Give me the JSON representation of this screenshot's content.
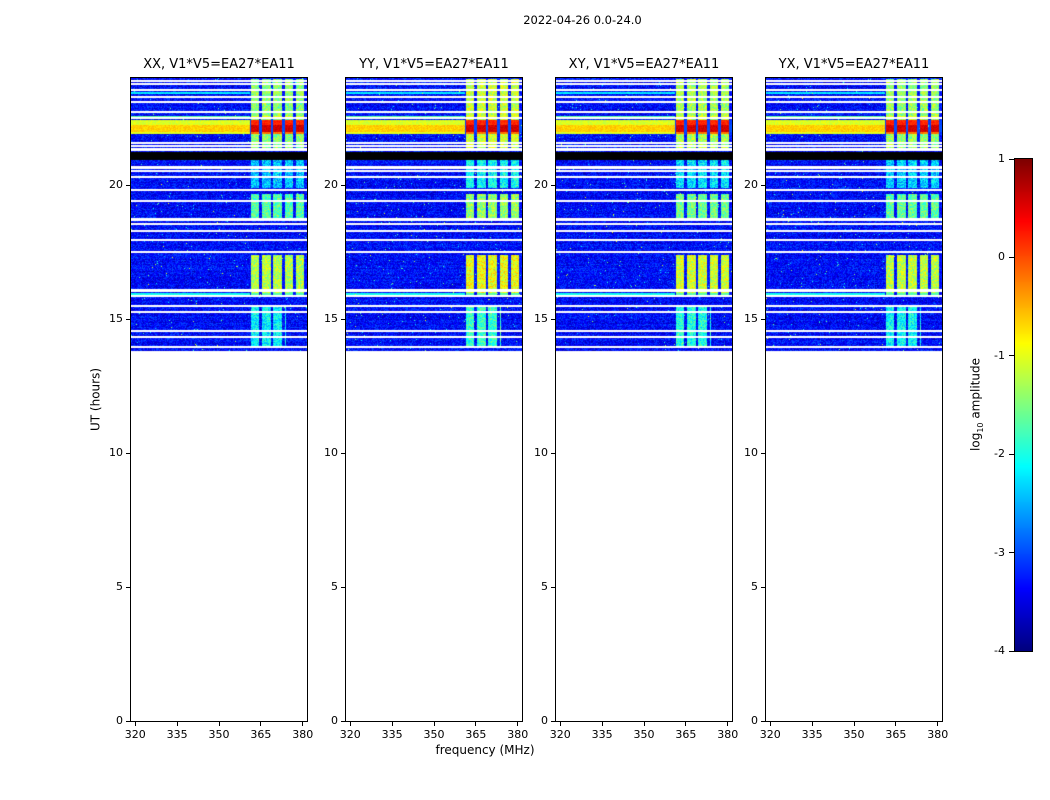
{
  "figure": {
    "title": "2022-04-26 0.0-24.0",
    "xlabel": "frequency (MHz)",
    "ylabel": "UT (hours)",
    "colorbar_label": {
      "pre": "log",
      "sub": "10",
      "post": " amplitude"
    }
  },
  "chart_data": {
    "type": "heatmap",
    "title": "2022-04-26 0.0-24.0",
    "panels": [
      {
        "label": "XX, V1*V5=EA27*EA11",
        "seed": 11,
        "boost": 0.0
      },
      {
        "label": "YY, V1*V5=EA27*EA11",
        "seed": 22,
        "boost": 0.3
      },
      {
        "label": "XY, V1*V5=EA27*EA11",
        "seed": 33,
        "boost": 0.15
      },
      {
        "label": "YX, V1*V5=EA27*EA11",
        "seed": 44,
        "boost": 0.05
      }
    ],
    "xaxis": {
      "label": "frequency (MHz)",
      "unit": "MHz",
      "range": [
        318.5,
        381.5
      ],
      "ticks": [
        320,
        335,
        350,
        365,
        380
      ]
    },
    "yaxis": {
      "label": "UT (hours)",
      "unit": "hours",
      "range": [
        0,
        24
      ],
      "ticks": [
        0,
        5,
        10,
        15,
        20
      ]
    },
    "colorbar": {
      "label": "log10 amplitude",
      "ticks": [
        1,
        0,
        -1,
        -2,
        -3,
        -4
      ],
      "vmin": -4,
      "vmax": 1,
      "colormap": "jet"
    },
    "data_time_range": [
      13.8,
      24.0
    ],
    "noise_floor": -3.35,
    "rfi_freq_range": [
      361,
      381.4
    ],
    "rfi_cell_mhz": 4,
    "rfi_blocks": [
      {
        "t0": 21.28,
        "t1": 23.97,
        "level": -1.45
      },
      {
        "t0": 19.9,
        "t1": 20.93,
        "level": -2.4
      },
      {
        "t0": 18.78,
        "t1": 19.68,
        "level": -1.7
      },
      {
        "t0": 15.98,
        "t1": 17.38,
        "level": -1.25
      },
      {
        "t0": 14.0,
        "t1": 15.45,
        "level": -2.15,
        "f1": 374
      }
    ],
    "bands": [
      {
        "t0": 21.9,
        "t1": 22.0,
        "level": -1.0,
        "rfi_level": -0.2
      },
      {
        "t0": 22.0,
        "t1": 22.25,
        "level": -0.65,
        "rfi_level": 0.6
      },
      {
        "t0": 22.25,
        "t1": 22.42,
        "level": -1.05,
        "rfi_level": 0.2
      },
      {
        "t0": 22.52,
        "t1": 22.6,
        "level": -1.7,
        "rfi_level": -1.0
      },
      {
        "t0": 23.42,
        "t1": 23.49,
        "level": -2.2,
        "rfi_level": -1.4
      },
      {
        "t0": 15.9,
        "t1": 15.98,
        "level": -2.05,
        "rfi_level": -1.7
      }
    ],
    "black_bands": [
      {
        "t0": 20.95,
        "t1": 21.25
      }
    ],
    "gaps": [
      13.97,
      14.32,
      14.56,
      15.28,
      15.5,
      15.86,
      16.07,
      17.52,
      17.96,
      18.3,
      18.56,
      18.72,
      19.42,
      19.82,
      20.32,
      20.52,
      20.66,
      21.33,
      21.46,
      21.58,
      22.5,
      22.72,
      23.1,
      23.3,
      23.56,
      23.78,
      23.9
    ],
    "gap_width": 0.08
  }
}
